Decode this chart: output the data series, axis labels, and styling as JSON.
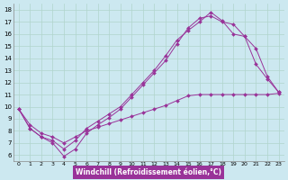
{
  "xlabel": "Windchill (Refroidissement éolien,°C)",
  "background_color": "#cce8f0",
  "grid_color": "#b0d4cc",
  "line_color": "#993399",
  "xlim": [
    -0.5,
    23.5
  ],
  "ylim": [
    5.5,
    18.5
  ],
  "xticks": [
    0,
    1,
    2,
    3,
    4,
    5,
    6,
    7,
    8,
    9,
    10,
    11,
    12,
    13,
    14,
    15,
    16,
    17,
    18,
    19,
    20,
    21,
    22,
    23
  ],
  "yticks": [
    6,
    7,
    8,
    9,
    10,
    11,
    12,
    13,
    14,
    15,
    16,
    17,
    18
  ],
  "line1_x": [
    0,
    1,
    2,
    3,
    4,
    5,
    6,
    7,
    8,
    9,
    10,
    11,
    12,
    13,
    14,
    15,
    16,
    17,
    18,
    19,
    20,
    21,
    22,
    23
  ],
  "line1_y": [
    9.8,
    8.2,
    7.5,
    7.0,
    5.9,
    6.5,
    7.8,
    8.5,
    9.1,
    9.8,
    10.8,
    11.8,
    12.8,
    13.8,
    15.2,
    16.5,
    17.3,
    17.5,
    17.0,
    16.8,
    15.8,
    14.8,
    12.5,
    11.2
  ],
  "line2_x": [
    0,
    1,
    2,
    3,
    4,
    5,
    6,
    7,
    8,
    9,
    10,
    11,
    12,
    13,
    14,
    15,
    16,
    17,
    18,
    19,
    20,
    21,
    22,
    23
  ],
  "line2_y": [
    9.8,
    8.2,
    7.5,
    7.2,
    6.5,
    7.2,
    8.2,
    8.8,
    9.4,
    10.0,
    11.0,
    12.0,
    13.0,
    14.2,
    15.5,
    16.3,
    17.0,
    17.8,
    17.1,
    16.0,
    15.8,
    13.5,
    12.3,
    11.2
  ],
  "line3_x": [
    0,
    1,
    2,
    3,
    4,
    5,
    6,
    7,
    8,
    9,
    10,
    11,
    12,
    13,
    14,
    15,
    16,
    17,
    18,
    19,
    20,
    21,
    22,
    23
  ],
  "line3_y": [
    9.8,
    8.5,
    7.8,
    7.5,
    7.0,
    7.5,
    8.0,
    8.3,
    8.6,
    8.9,
    9.2,
    9.5,
    9.8,
    10.1,
    10.5,
    10.9,
    11.0,
    11.0,
    11.0,
    11.0,
    11.0,
    11.0,
    11.0,
    11.1
  ]
}
